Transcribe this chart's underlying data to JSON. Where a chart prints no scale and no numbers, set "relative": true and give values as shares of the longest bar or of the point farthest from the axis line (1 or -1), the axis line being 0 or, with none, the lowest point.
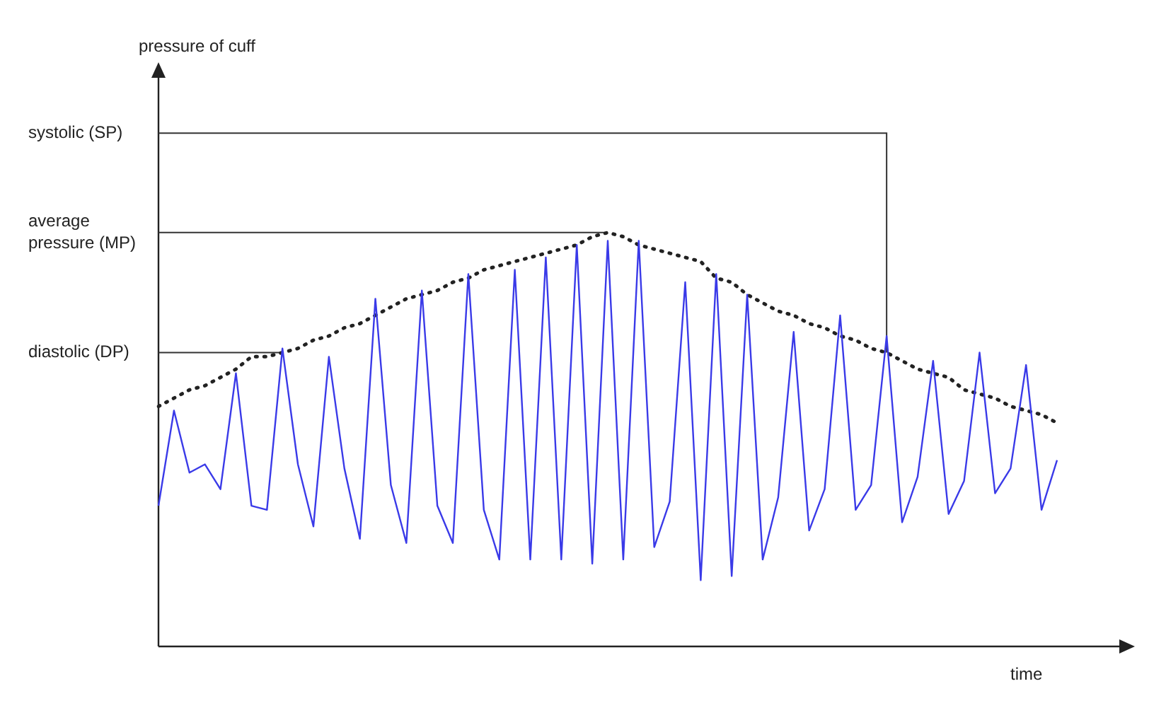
{
  "chart_data": {
    "type": "line",
    "relative": true,
    "annotations": [
      "pressure of cuff"
    ],
    "xlabel": "time",
    "legend": false,
    "grid": false,
    "categories": [
      null,
      null,
      null,
      null,
      null,
      null,
      null,
      null,
      null,
      null,
      null,
      null,
      null,
      null,
      null,
      null,
      null,
      null,
      null,
      null,
      null,
      null,
      null,
      null,
      null,
      null,
      null,
      null,
      null,
      null,
      null,
      null,
      null,
      null,
      null,
      null,
      null,
      null,
      null,
      null,
      null,
      null,
      null,
      null,
      null,
      null,
      null,
      null,
      null,
      null,
      null,
      null,
      null,
      null,
      null,
      null,
      null,
      null,
      null
    ],
    "series": [
      {
        "color": "#3a3ae8",
        "line_style": "solid",
        "marker": "none",
        "values": [
          0.34,
          0.57,
          0.42,
          0.44,
          0.38,
          0.66,
          0.34,
          0.33,
          0.72,
          0.44,
          0.29,
          0.7,
          0.43,
          0.26,
          0.84,
          0.39,
          0.25,
          0.86,
          0.34,
          0.25,
          0.9,
          0.33,
          0.21,
          0.91,
          0.21,
          0.94,
          0.21,
          0.97,
          0.2,
          0.98,
          0.21,
          0.98,
          0.24,
          0.35,
          0.88,
          0.16,
          0.9,
          0.17,
          0.85,
          0.21,
          0.36,
          0.76,
          0.28,
          0.38,
          0.8,
          0.33,
          0.39,
          0.75,
          0.3,
          0.41,
          0.69,
          0.32,
          0.4,
          0.71,
          0.37,
          0.43,
          0.68,
          0.33,
          0.45
        ]
      },
      {
        "color": "#222222",
        "line_style": "dotted",
        "marker": "none",
        "values": [
          0.58,
          0.6,
          0.62,
          0.63,
          0.65,
          0.67,
          0.7,
          0.7,
          0.71,
          0.72,
          0.74,
          0.75,
          0.77,
          0.78,
          0.8,
          0.82,
          0.84,
          0.85,
          0.86,
          0.88,
          0.89,
          0.91,
          0.92,
          0.93,
          0.94,
          0.95,
          0.96,
          0.97,
          0.99,
          1,
          0.99,
          0.97,
          0.96,
          0.95,
          0.94,
          0.93,
          0.89,
          0.88,
          0.85,
          0.83,
          0.81,
          0.8,
          0.78,
          0.77,
          0.75,
          0.74,
          0.72,
          0.71,
          0.69,
          0.67,
          0.66,
          0.65,
          0.62,
          0.61,
          0.6,
          0.58,
          0.57,
          0.56,
          0.54
        ]
      }
    ],
    "ref_lines": [
      {
        "axis": "y",
        "value": 1.24,
        "label": "systolic (SP)",
        "color": "#333333"
      },
      {
        "axis": "y",
        "value": 1,
        "label": "average pressure (MP)",
        "color": "#333333"
      },
      {
        "axis": "y",
        "value": 0.71,
        "label": "diastolic (DP)",
        "color": "#333333"
      }
    ]
  }
}
